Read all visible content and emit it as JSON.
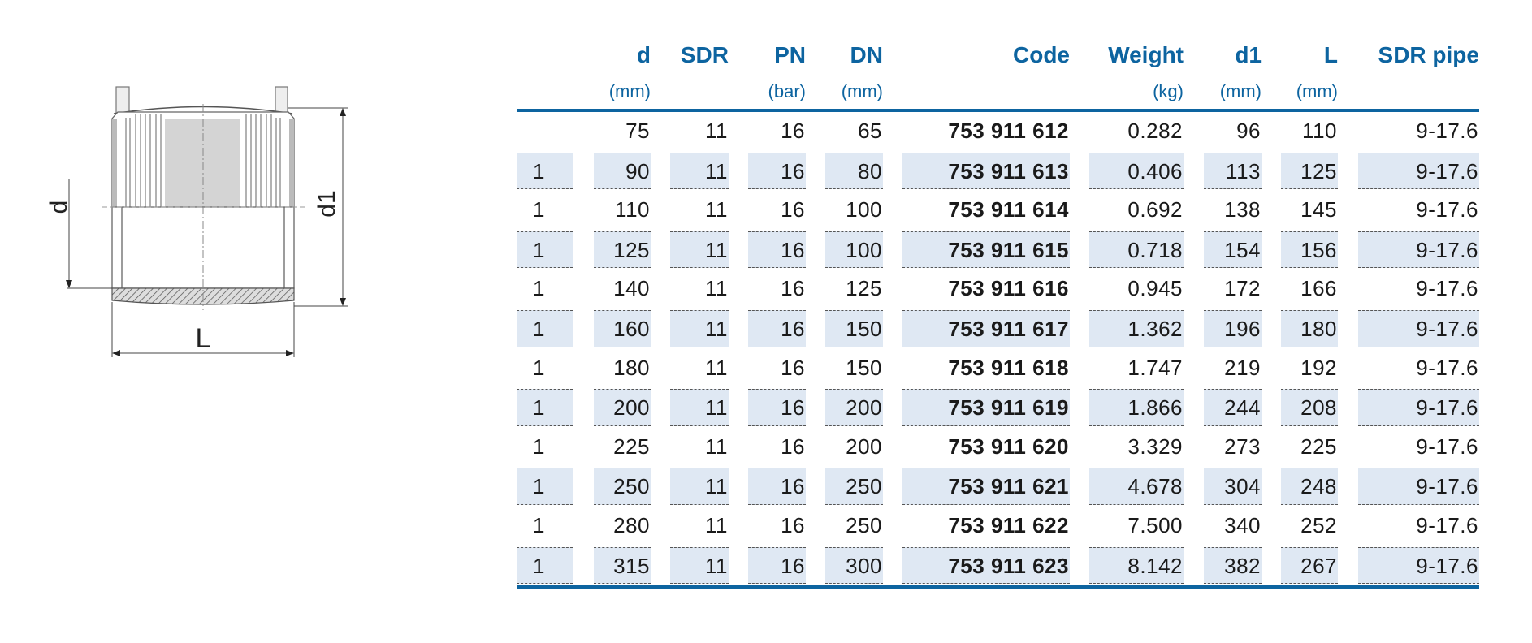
{
  "drawing": {
    "labels": {
      "d": "d",
      "d1": "d1",
      "L": "L"
    }
  },
  "colors": {
    "accent": "#0d64a0",
    "row_shade": "#dfe8f3"
  },
  "table": {
    "columns": [
      {
        "title": "",
        "unit": ""
      },
      {
        "title": "d",
        "unit": "(mm)"
      },
      {
        "title": "SDR",
        "unit": ""
      },
      {
        "title": "PN",
        "unit": "(bar)"
      },
      {
        "title": "DN",
        "unit": "(mm)"
      },
      {
        "title": "Code",
        "unit": ""
      },
      {
        "title": "Weight",
        "unit": "(kg)"
      },
      {
        "title": "d1",
        "unit": "(mm)"
      },
      {
        "title": "L",
        "unit": "(mm)"
      },
      {
        "title": "SDR pipe",
        "unit": ""
      }
    ],
    "rows": [
      [
        "",
        "75",
        "11",
        "16",
        "65",
        "753 911 612",
        "0.282",
        "96",
        "110",
        "9-17.6"
      ],
      [
        "1",
        "90",
        "11",
        "16",
        "80",
        "753 911 613",
        "0.406",
        "113",
        "125",
        "9-17.6"
      ],
      [
        "1",
        "110",
        "11",
        "16",
        "100",
        "753 911 614",
        "0.692",
        "138",
        "145",
        "9-17.6"
      ],
      [
        "1",
        "125",
        "11",
        "16",
        "100",
        "753 911 615",
        "0.718",
        "154",
        "156",
        "9-17.6"
      ],
      [
        "1",
        "140",
        "11",
        "16",
        "125",
        "753 911 616",
        "0.945",
        "172",
        "166",
        "9-17.6"
      ],
      [
        "1",
        "160",
        "11",
        "16",
        "150",
        "753 911 617",
        "1.362",
        "196",
        "180",
        "9-17.6"
      ],
      [
        "1",
        "180",
        "11",
        "16",
        "150",
        "753 911 618",
        "1.747",
        "219",
        "192",
        "9-17.6"
      ],
      [
        "1",
        "200",
        "11",
        "16",
        "200",
        "753 911 619",
        "1.866",
        "244",
        "208",
        "9-17.6"
      ],
      [
        "1",
        "225",
        "11",
        "16",
        "200",
        "753 911 620",
        "3.329",
        "273",
        "225",
        "9-17.6"
      ],
      [
        "1",
        "250",
        "11",
        "16",
        "250",
        "753 911 621",
        "4.678",
        "304",
        "248",
        "9-17.6"
      ],
      [
        "1",
        "280",
        "11",
        "16",
        "250",
        "753 911 622",
        "7.500",
        "340",
        "252",
        "9-17.6"
      ],
      [
        "1",
        "315",
        "11",
        "16",
        "300",
        "753 911 623",
        "8.142",
        "382",
        "267",
        "9-17.6"
      ]
    ]
  }
}
